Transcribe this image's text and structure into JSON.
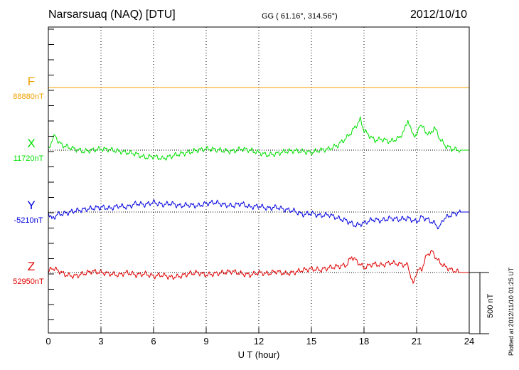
{
  "header": {
    "station": "Narsarsuaq (NAQ)  [DTU]",
    "coords": "GG ( 61.16°, 314.56°)",
    "date": "2012/10/10"
  },
  "footer": {
    "plotted": "Plotted at 2012/11/10 01:25 UT"
  },
  "chart_data": {
    "type": "line",
    "xlabel": "U T (hour)",
    "xlim": [
      0,
      24
    ],
    "xticks": [
      0,
      3,
      6,
      9,
      12,
      15,
      18,
      21,
      24
    ],
    "grid": true,
    "scale_bar_label": "500 nT",
    "series": [
      {
        "name": "F",
        "baseline_label": "88880nT",
        "color": "#f0a000",
        "x": [
          0,
          24
        ],
        "y": [
          0,
          0
        ]
      },
      {
        "name": "X",
        "baseline_label": "11720nT",
        "color": "#00e000",
        "x": [
          0,
          0.2,
          0.4,
          0.6,
          0.8,
          1,
          1.5,
          2,
          2.5,
          3,
          3.5,
          4,
          4.5,
          5,
          5.5,
          6,
          6.5,
          7,
          7.5,
          8,
          8.5,
          9,
          9.5,
          10,
          10.5,
          11,
          11.5,
          12,
          12.5,
          13,
          13.5,
          14,
          14.5,
          15,
          15.5,
          16,
          16.5,
          17,
          17.3,
          17.6,
          17.8,
          18,
          18.3,
          18.6,
          19,
          19.5,
          20,
          20.3,
          20.5,
          20.7,
          21,
          21.2,
          21.5,
          21.8,
          22,
          22.3,
          22.6,
          23,
          23.5,
          24
        ],
        "y": [
          0,
          80,
          120,
          60,
          40,
          30,
          10,
          -10,
          0,
          10,
          5,
          -10,
          -20,
          -30,
          -60,
          -50,
          -70,
          -50,
          -30,
          -20,
          0,
          10,
          5,
          -5,
          -10,
          10,
          0,
          -20,
          -40,
          -30,
          -10,
          -5,
          -10,
          -20,
          0,
          10,
          40,
          100,
          150,
          210,
          250,
          160,
          120,
          80,
          90,
          70,
          100,
          160,
          250,
          150,
          110,
          220,
          150,
          130,
          190,
          100,
          40,
          10,
          0,
          0
        ]
      },
      {
        "name": "Y",
        "baseline_label": "-5210nT",
        "color": "#0000e0",
        "x": [
          0,
          0.2,
          0.5,
          1,
          1.5,
          2,
          2.5,
          3,
          3.5,
          4,
          4.5,
          5,
          5.5,
          6,
          6.5,
          7,
          7.5,
          8,
          8.5,
          9,
          9.5,
          10,
          10.5,
          11,
          11.5,
          12,
          12.5,
          13,
          13.5,
          14,
          14.5,
          15,
          15.5,
          16,
          16.5,
          17,
          17.5,
          18,
          18.5,
          19,
          19.5,
          20,
          20.5,
          21,
          21.3,
          21.6,
          22,
          22.3,
          22.5,
          23,
          23.5,
          24
        ],
        "y": [
          0,
          -60,
          -20,
          -10,
          10,
          20,
          30,
          40,
          30,
          50,
          40,
          70,
          60,
          80,
          60,
          70,
          50,
          60,
          50,
          70,
          80,
          60,
          50,
          70,
          40,
          50,
          30,
          40,
          20,
          10,
          -20,
          -10,
          -30,
          -20,
          -50,
          -70,
          -110,
          -90,
          -60,
          -70,
          -50,
          -60,
          -50,
          -80,
          -40,
          -60,
          -90,
          -130,
          -60,
          -20,
          0,
          0
        ]
      },
      {
        "name": "Z",
        "baseline_label": "52950nT",
        "color": "#e00000",
        "x": [
          0,
          0.2,
          0.5,
          1,
          1.5,
          2,
          2.5,
          3,
          3.5,
          4,
          4.5,
          5,
          5.5,
          6,
          6.5,
          7,
          7.5,
          8,
          8.5,
          9,
          9.5,
          10,
          10.5,
          11,
          11.5,
          12,
          12.5,
          13,
          13.5,
          14,
          14.5,
          15,
          15.5,
          16,
          16.5,
          17,
          17.3,
          17.6,
          18,
          18.5,
          19,
          19.5,
          20,
          20.5,
          20.8,
          21,
          21.3,
          21.6,
          21.9,
          22.2,
          22.6,
          23,
          23.5,
          24
        ],
        "y": [
          0,
          40,
          20,
          -20,
          -30,
          -10,
          10,
          0,
          -10,
          -20,
          0,
          -20,
          -10,
          -30,
          -20,
          -40,
          -30,
          -10,
          0,
          -20,
          -10,
          0,
          10,
          -10,
          -20,
          0,
          -10,
          10,
          -10,
          0,
          20,
          30,
          20,
          40,
          50,
          60,
          130,
          90,
          40,
          70,
          60,
          80,
          70,
          60,
          -100,
          10,
          30,
          150,
          170,
          100,
          50,
          20,
          0,
          0
        ]
      }
    ]
  }
}
